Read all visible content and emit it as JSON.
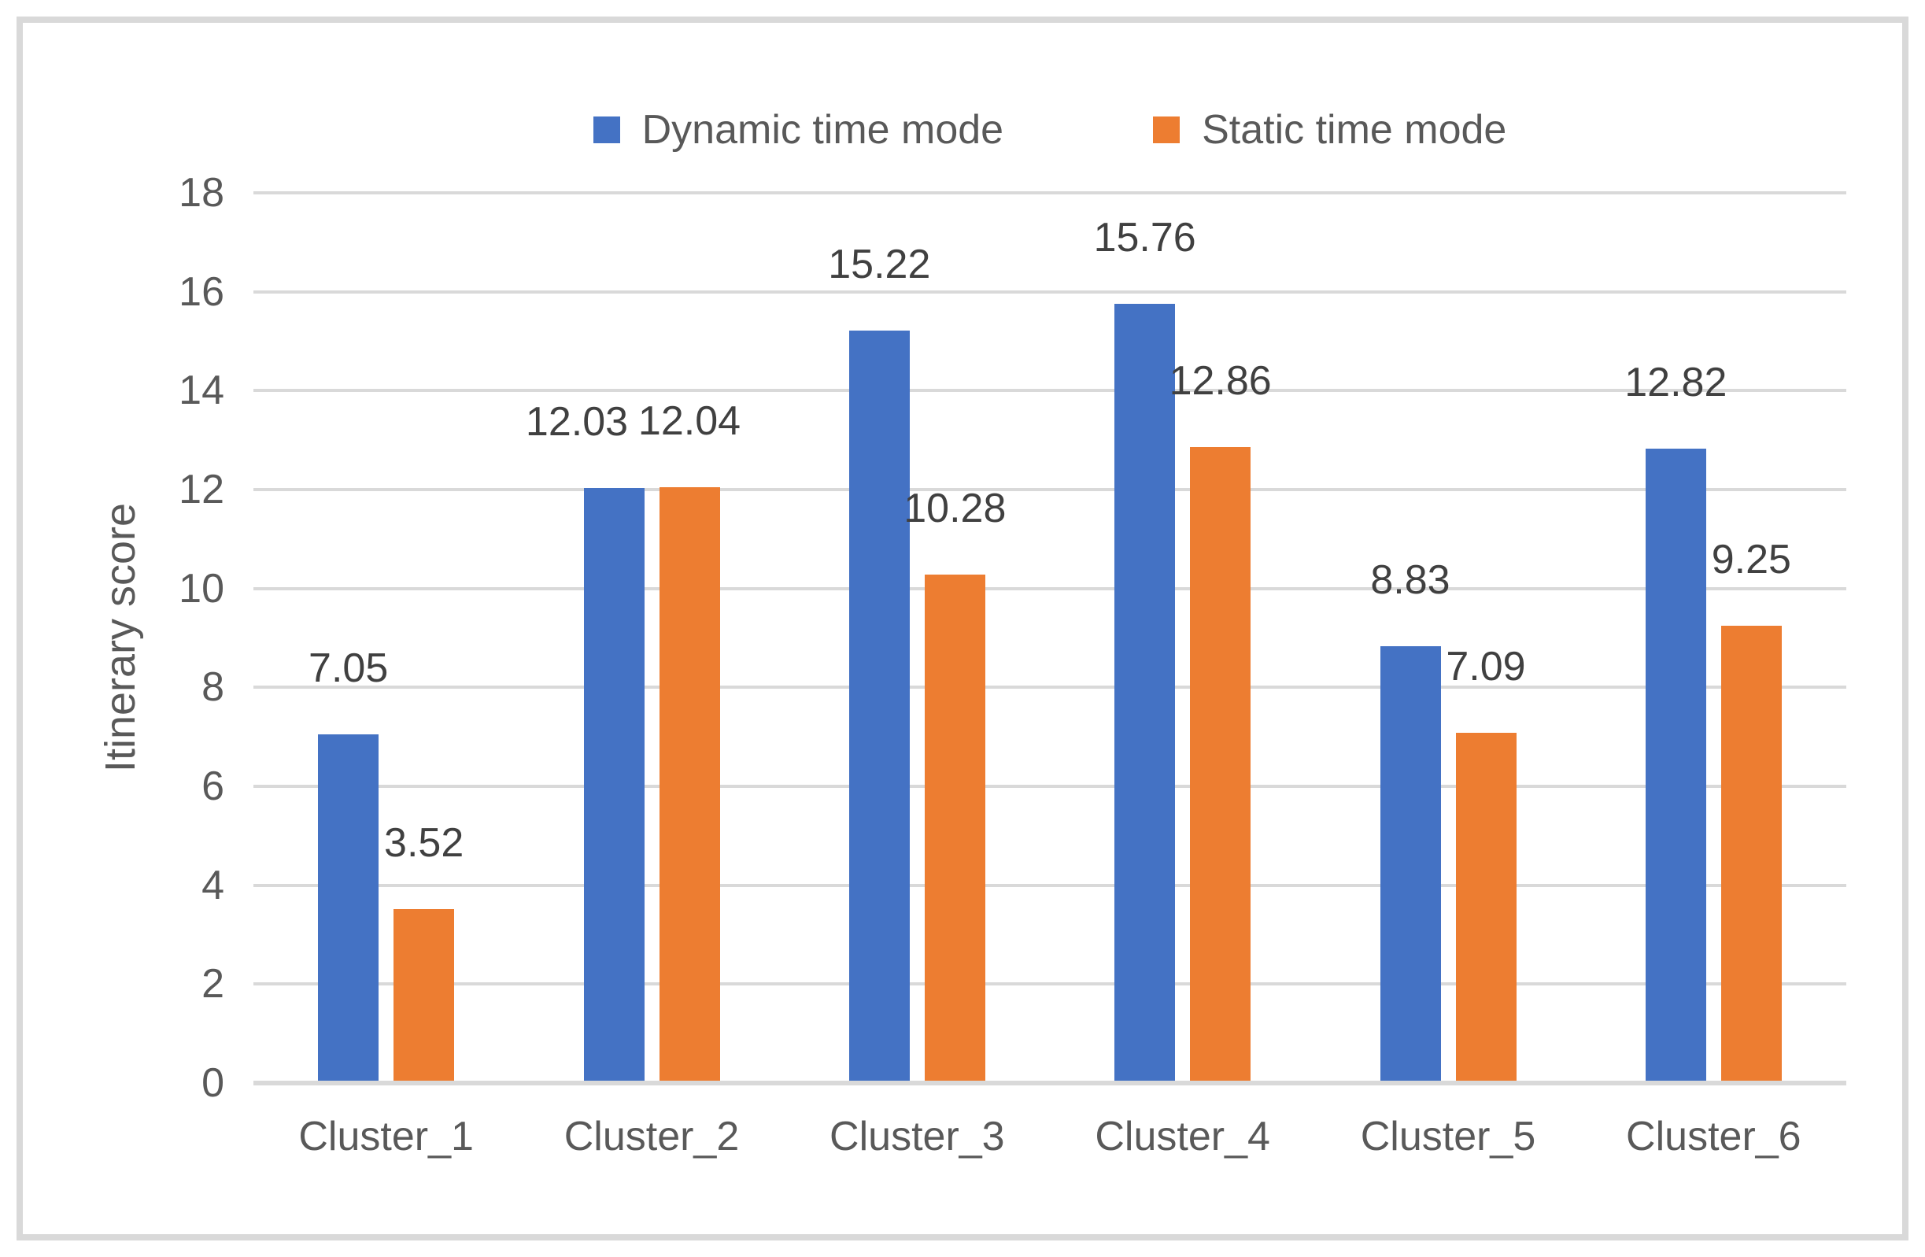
{
  "chart_data": {
    "type": "bar",
    "title": "",
    "categories": [
      "Cluster_1",
      "Cluster_2",
      "Cluster_3",
      "Cluster_4",
      "Cluster_5",
      "Cluster_6"
    ],
    "series": [
      {
        "name": "Dynamic time mode",
        "color": "#4472C4",
        "values": [
          7.05,
          12.03,
          15.22,
          15.76,
          8.83,
          12.82
        ]
      },
      {
        "name": "Static time mode",
        "color": "#ED7D31",
        "values": [
          3.52,
          12.04,
          10.28,
          12.86,
          7.09,
          9.25
        ]
      }
    ],
    "xlabel": "",
    "ylabel": "Itinerary score",
    "ylim": [
      0,
      18
    ],
    "ytick_step": 2,
    "ytick_labels": [
      "0",
      "2",
      "4",
      "6",
      "8",
      "10",
      "12",
      "14",
      "16",
      "18"
    ],
    "grid": true,
    "legend_position": "top",
    "data_labels": true,
    "data_label_format": "0.00"
  },
  "colors": {
    "grid": "#D9D9D9",
    "axis": "#D9D9D9",
    "frame": "#D9D9D9",
    "tick_text": "#595959",
    "data_label_text": "#404040"
  }
}
